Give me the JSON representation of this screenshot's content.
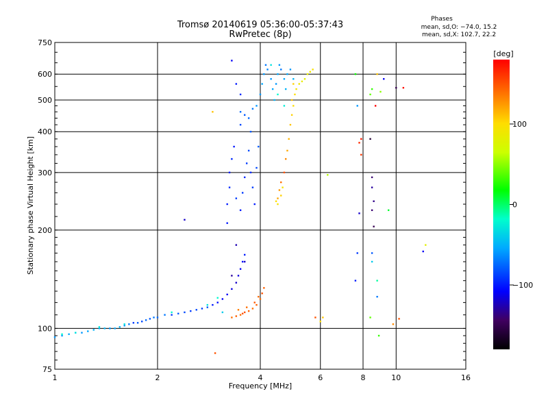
{
  "chart_data": {
    "type": "scatter",
    "title": "Tromsø 20140619 05:36:00-05:37:43",
    "subtitle": "RwPretec (8p)",
    "xlabel": "Frequency [MHz]",
    "ylabel": "Stationary phase Virtual Height [km]",
    "x_scale": "log2",
    "y_scale": "log",
    "xlim": [
      1,
      16
    ],
    "ylim": [
      75,
      750
    ],
    "x_ticks": [
      1,
      2,
      4,
      6,
      8,
      10,
      16
    ],
    "x_tick_labels": [
      "1",
      "2",
      "4",
      "6",
      "8",
      "10",
      "16"
    ],
    "y_ticks": [
      75,
      100,
      200,
      300,
      400,
      500,
      600,
      750
    ],
    "y_tick_labels": [
      "75",
      "100",
      "200",
      "300",
      "400",
      "500",
      "600",
      "750"
    ],
    "grid": true,
    "phase_stats": {
      "heading": "Phases",
      "o_line": "mean, sd,O: −74.0, 15.2",
      "x_line": "mean, sd,X: 102.7, 22.2"
    },
    "colorbar": {
      "unit": "[deg]",
      "ticks": [
        100,
        0,
        -100
      ],
      "tick_labels": [
        "100",
        "0",
        "−100"
      ],
      "range": [
        -180,
        180
      ]
    },
    "series": [
      {
        "points": [
          [
            1.0,
            94,
            -60
          ],
          [
            1.05,
            95,
            -60
          ],
          [
            1.1,
            96,
            -55
          ],
          [
            1.15,
            97,
            -55
          ],
          [
            1.2,
            97,
            -60
          ],
          [
            1.25,
            98,
            -55
          ],
          [
            1.3,
            99,
            -50
          ],
          [
            1.35,
            100,
            -55
          ],
          [
            1.4,
            100,
            -50
          ],
          [
            1.45,
            100,
            -60
          ],
          [
            1.5,
            100,
            -55
          ],
          [
            1.55,
            101,
            -50
          ],
          [
            1.6,
            102,
            -60
          ],
          [
            1.65,
            103,
            -70
          ],
          [
            1.7,
            104,
            -90
          ],
          [
            1.75,
            104,
            -80
          ],
          [
            1.8,
            105,
            -85
          ],
          [
            1.85,
            106,
            -75
          ],
          [
            1.9,
            107,
            -80
          ],
          [
            1.95,
            108,
            -70
          ],
          [
            2.0,
            108,
            -75
          ],
          [
            2.1,
            110,
            -70
          ],
          [
            2.2,
            110,
            -90
          ],
          [
            2.3,
            111,
            -80
          ],
          [
            2.4,
            112,
            -85
          ],
          [
            2.5,
            113,
            -90
          ],
          [
            2.6,
            114,
            -85
          ],
          [
            2.7,
            115,
            -90
          ],
          [
            2.8,
            116,
            -80
          ],
          [
            2.9,
            118,
            -100
          ],
          [
            3.0,
            120,
            -105
          ],
          [
            3.1,
            123,
            -110
          ],
          [
            3.2,
            127,
            -110
          ],
          [
            3.3,
            132,
            -115
          ],
          [
            3.4,
            138,
            -120
          ],
          [
            3.45,
            145,
            -115
          ],
          [
            3.5,
            152,
            -110
          ],
          [
            3.55,
            160,
            -105
          ],
          [
            3.6,
            168,
            -100
          ],
          [
            3.2,
            210,
            -100
          ],
          [
            3.2,
            240,
            -100
          ],
          [
            3.25,
            270,
            -95
          ],
          [
            3.25,
            300,
            -100
          ],
          [
            3.3,
            330,
            -95
          ],
          [
            3.35,
            360,
            -100
          ],
          [
            3.4,
            250,
            -90
          ],
          [
            3.5,
            230,
            -100
          ],
          [
            3.55,
            260,
            -90
          ],
          [
            3.6,
            290,
            -95
          ],
          [
            3.65,
            320,
            -90
          ],
          [
            3.7,
            350,
            -85
          ],
          [
            3.75,
            300,
            -95
          ],
          [
            3.8,
            270,
            -90
          ],
          [
            3.85,
            240,
            -100
          ],
          [
            3.9,
            310,
            -85
          ],
          [
            3.95,
            360,
            -80
          ],
          [
            3.5,
            420,
            -85
          ],
          [
            3.6,
            450,
            -80
          ],
          [
            3.7,
            440,
            -75
          ],
          [
            3.75,
            400,
            -80
          ],
          [
            3.5,
            460,
            -75
          ],
          [
            3.8,
            470,
            -70
          ],
          [
            3.9,
            480,
            -60
          ],
          [
            4.0,
            520,
            -60
          ],
          [
            4.05,
            560,
            -55
          ],
          [
            4.1,
            600,
            -60
          ],
          [
            4.15,
            640,
            -70
          ],
          [
            4.2,
            620,
            -65
          ],
          [
            4.3,
            580,
            -60
          ],
          [
            4.35,
            540,
            -55
          ],
          [
            4.4,
            500,
            -50
          ],
          [
            4.45,
            560,
            -60
          ],
          [
            4.5,
            600,
            -55
          ],
          [
            4.55,
            640,
            -60
          ],
          [
            4.6,
            620,
            -70
          ],
          [
            4.7,
            580,
            -55
          ],
          [
            4.75,
            540,
            -50
          ],
          [
            4.8,
            600,
            -55
          ],
          [
            4.9,
            620,
            -60
          ],
          [
            5.0,
            580,
            -50
          ],
          [
            3.3,
            660,
            -110
          ],
          [
            3.4,
            560,
            -100
          ],
          [
            3.5,
            520,
            -95
          ],
          [
            2.4,
            215,
            -120
          ],
          [
            3.6,
            160,
            -120
          ],
          [
            3.4,
            180,
            -125
          ],
          [
            3.3,
            145,
            -130
          ],
          [
            8.5,
            230,
            -140
          ],
          [
            8.5,
            270,
            -130
          ],
          [
            8.6,
            205,
            -150
          ],
          [
            8.6,
            245,
            -135
          ],
          [
            7.6,
            140,
            -100
          ],
          [
            7.7,
            170,
            -90
          ],
          [
            8.5,
            170,
            -80
          ],
          [
            8.8,
            125,
            -70
          ],
          [
            12.0,
            172,
            -110
          ],
          [
            8.4,
            380,
            -160
          ],
          [
            8.5,
            290,
            -140
          ],
          [
            7.8,
            225,
            -120
          ],
          [
            9.2,
            580,
            -110
          ],
          [
            10.0,
            545,
            -150
          ],
          [
            7.7,
            480,
            -60
          ]
        ]
      },
      {
        "points": [
          [
            3.3,
            108,
            140
          ],
          [
            3.4,
            109,
            145
          ],
          [
            3.5,
            110,
            140
          ],
          [
            3.6,
            112,
            150
          ],
          [
            3.7,
            113,
            145
          ],
          [
            3.8,
            115,
            140
          ],
          [
            3.9,
            118,
            145
          ],
          [
            4.0,
            123,
            140
          ],
          [
            4.05,
            128,
            150
          ],
          [
            4.1,
            133,
            145
          ],
          [
            3.45,
            114,
            135
          ],
          [
            3.65,
            116,
            140
          ],
          [
            3.85,
            120,
            148
          ],
          [
            3.95,
            125,
            142
          ],
          [
            3.55,
            111,
            150
          ],
          [
            4.5,
            250,
            120
          ],
          [
            4.55,
            265,
            125
          ],
          [
            4.6,
            280,
            140
          ],
          [
            4.7,
            300,
            150
          ],
          [
            4.75,
            330,
            130
          ],
          [
            4.8,
            350,
            120
          ],
          [
            4.85,
            380,
            115
          ],
          [
            4.9,
            420,
            110
          ],
          [
            4.95,
            450,
            105
          ],
          [
            5.0,
            480,
            100
          ],
          [
            4.45,
            245,
            100
          ],
          [
            4.5,
            240,
            95
          ],
          [
            4.6,
            255,
            105
          ],
          [
            4.65,
            270,
            95
          ],
          [
            5.05,
            520,
            100
          ],
          [
            5.1,
            540,
            95
          ],
          [
            5.2,
            560,
            90
          ],
          [
            5.3,
            570,
            85
          ],
          [
            5.4,
            580,
            80
          ],
          [
            5.5,
            600,
            85
          ],
          [
            5.6,
            610,
            90
          ],
          [
            5.7,
            620,
            95
          ],
          [
            5.0,
            560,
            105
          ],
          [
            4.95,
            500,
            110
          ],
          [
            2.9,
            460,
            110
          ],
          [
            2.95,
            84,
            150
          ],
          [
            6.0,
            105,
            100
          ],
          [
            6.1,
            108,
            110
          ],
          [
            5.8,
            108,
            150
          ],
          [
            7.9,
            380,
            170
          ],
          [
            7.8,
            370,
            165
          ],
          [
            7.9,
            340,
            160
          ],
          [
            8.7,
            480,
            180
          ],
          [
            8.8,
            600,
            110
          ],
          [
            10.5,
            545,
            175
          ],
          [
            10.2,
            107,
            150
          ],
          [
            9.8,
            103,
            130
          ],
          [
            12.2,
            180,
            80
          ],
          [
            6.3,
            295,
            60
          ],
          [
            8.4,
            108,
            40
          ],
          [
            8.9,
            95,
            30
          ]
        ]
      },
      {
        "points": [
          [
            1.05,
            96,
            -20
          ],
          [
            1.15,
            97,
            -30
          ],
          [
            1.35,
            101,
            -25
          ],
          [
            1.6,
            103,
            -30
          ],
          [
            2.2,
            112,
            -20
          ],
          [
            2.8,
            118,
            -30
          ],
          [
            3.0,
            124,
            -20
          ],
          [
            3.1,
            112,
            -40
          ],
          [
            4.3,
            640,
            -30
          ],
          [
            4.5,
            520,
            -20
          ],
          [
            4.7,
            480,
            -25
          ],
          [
            9.5,
            230,
            10
          ],
          [
            8.5,
            540,
            30
          ],
          [
            8.4,
            520,
            40
          ],
          [
            9.0,
            530,
            50
          ],
          [
            8.5,
            160,
            -40
          ],
          [
            8.8,
            140,
            -10
          ],
          [
            7.6,
            600,
            20
          ]
        ]
      }
    ]
  }
}
